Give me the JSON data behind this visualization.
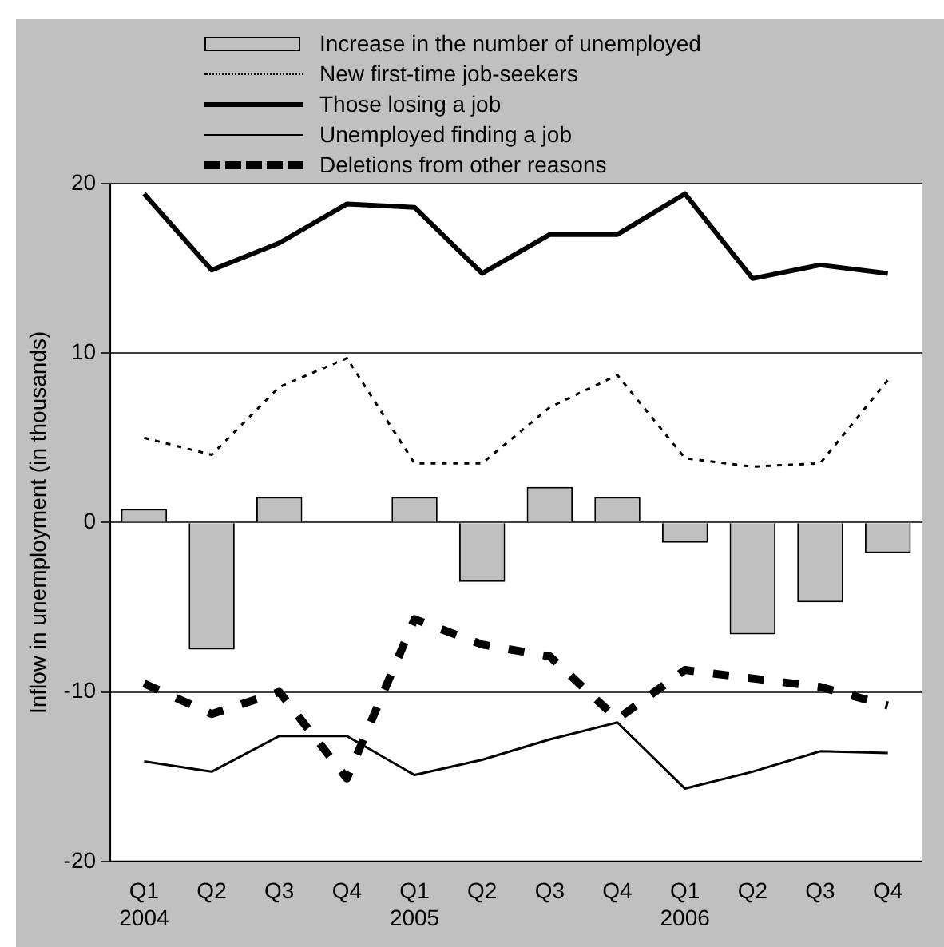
{
  "chart_data": {
    "type": "bar",
    "ylabel": "Inflow in unemployment (in thousands)",
    "categories": [
      "Q1 2004",
      "Q2",
      "Q3",
      "Q4",
      "Q1 2005",
      "Q2",
      "Q3",
      "Q4",
      "Q1 2006",
      "Q2",
      "Q3",
      "Q4"
    ],
    "series": [
      {
        "name": "Increase in the number of unemployed",
        "color": "#c0c0c0",
        "values": [
          0.8,
          -7.5,
          1.5,
          0,
          1.5,
          -3.5,
          2.1,
          1.5,
          -1.2,
          -6.6,
          -4.7,
          -1.8
        ]
      },
      {
        "name": "New first-time job-seekers",
        "type": "line",
        "color": "#000000",
        "line_style": "dotted",
        "values": [
          5.0,
          4.0,
          8.0,
          9.7,
          3.5,
          3.5,
          6.8,
          8.7,
          3.8,
          3.3,
          3.5,
          8.4
        ]
      },
      {
        "name": "Those losing a job",
        "type": "line",
        "color": "#000000",
        "line_style": "solid",
        "values": [
          19.4,
          14.9,
          16.5,
          18.8,
          18.6,
          14.7,
          17.0,
          17.0,
          19.4,
          14.4,
          15.2,
          14.7
        ]
      },
      {
        "name": "Unemployed finding a job",
        "type": "line",
        "color": "#000000",
        "line_style": "solid",
        "values": [
          -14.1,
          -14.7,
          -12.6,
          -12.6,
          -14.9,
          -14.0,
          -12.8,
          -11.8,
          -15.7,
          -14.7,
          -13.5,
          -13.6
        ]
      },
      {
        "name": "Deletions from other reasons",
        "type": "line",
        "color": "#000000",
        "line_style": "dashed",
        "values": [
          -9.5,
          -11.3,
          -10.0,
          -15.1,
          -5.7,
          -7.2,
          -7.9,
          -11.6,
          -8.7,
          -9.2,
          -9.7,
          -10.8
        ]
      }
    ],
    "ylim": [
      -20,
      20
    ],
    "yticks": [
      -20,
      -10,
      0,
      10,
      20
    ],
    "grid": "y",
    "legend": "top",
    "marker": "none"
  }
}
